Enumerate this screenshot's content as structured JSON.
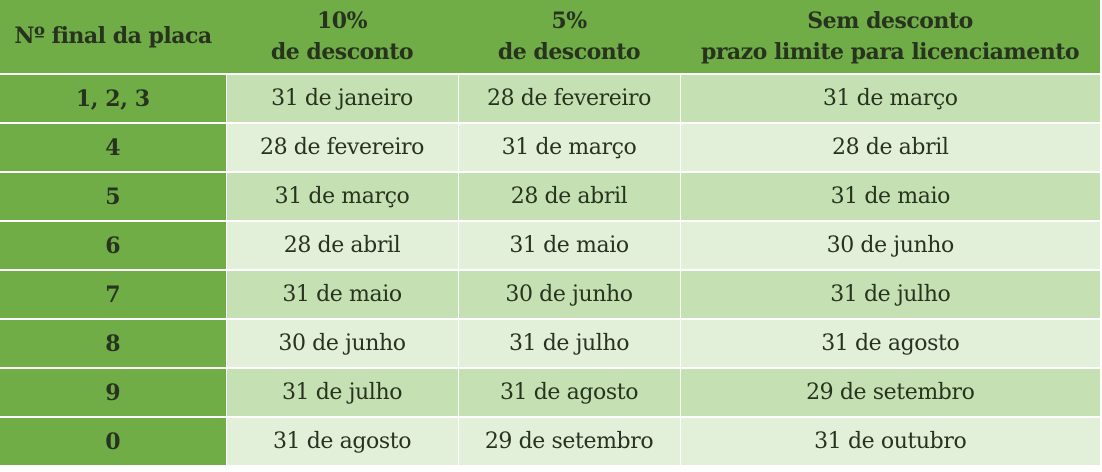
{
  "colors": {
    "header_bg": "#70ad47",
    "key_col_bg": "#70ad47",
    "row_odd_bg": "#c5e0b3",
    "row_even_bg": "#e2efd9",
    "text": "#27331f"
  },
  "table": {
    "headers": [
      {
        "line1": "Nº final da placa",
        "line2": ""
      },
      {
        "line1": "10%",
        "line2": "de desconto"
      },
      {
        "line1": "5%",
        "line2": "de desconto"
      },
      {
        "line1": "Sem desconto",
        "line2": "prazo limite para licenciamento"
      }
    ],
    "rows": [
      {
        "plate": "1, 2, 3",
        "discount10": "31 de janeiro",
        "discount5": "28 de fevereiro",
        "no_discount": "31 de março"
      },
      {
        "plate": "4",
        "discount10": "28 de fevereiro",
        "discount5": "31 de março",
        "no_discount": "28 de abril"
      },
      {
        "plate": "5",
        "discount10": "31 de março",
        "discount5": "28 de abril",
        "no_discount": "31 de maio"
      },
      {
        "plate": "6",
        "discount10": "28 de abril",
        "discount5": "31 de maio",
        "no_discount": "30 de junho"
      },
      {
        "plate": "7",
        "discount10": "31 de maio",
        "discount5": "30 de junho",
        "no_discount": "31 de julho"
      },
      {
        "plate": "8",
        "discount10": "30 de junho",
        "discount5": "31 de julho",
        "no_discount": "31 de agosto"
      },
      {
        "plate": "9",
        "discount10": "31 de julho",
        "discount5": "31 de agosto",
        "no_discount": "29 de setembro"
      },
      {
        "plate": "0",
        "discount10": "31 de agosto",
        "discount5": "29 de setembro",
        "no_discount": "31 de outubro"
      }
    ]
  }
}
